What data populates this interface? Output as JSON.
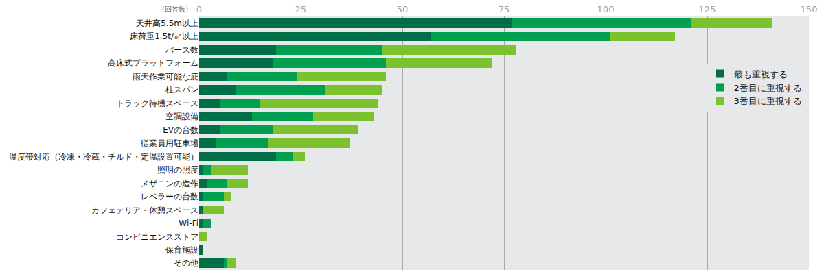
{
  "chart_data": {
    "type": "bar",
    "orientation": "horizontal",
    "stacked": true,
    "x_label": "〈回答数〉",
    "categories": [
      "天井高5.5m以上",
      "床荷重1.5t/㎡以上",
      "バース数",
      "高床式プラットフォーム",
      "雨天作業可能な庇",
      "柱スパン",
      "トラック待機スペース",
      "空調設備",
      "EVの台数",
      "従業員用駐車場",
      "温度帯対応（冷凍・冷蔵・チルド・定温設置可能）",
      "照明の照度",
      "メザニンの造作",
      "レベラーの台数",
      "カフェテリア・休憩スペース",
      "Wi-Fi",
      "コンビニエンスストア",
      "保育施設",
      "その他"
    ],
    "series": [
      {
        "name": "最も重視する",
        "color": "#006e46",
        "values": [
          77,
          57,
          19,
          18,
          7,
          9,
          5,
          13,
          5,
          4,
          19,
          1,
          2,
          1,
          1,
          1,
          0,
          1,
          6
        ]
      },
      {
        "name": "2番目に重視する",
        "color": "#00a050",
        "values": [
          44,
          44,
          26,
          28,
          17,
          22,
          10,
          15,
          13,
          13,
          4,
          2,
          5,
          5,
          0,
          2,
          0,
          0,
          1
        ]
      },
      {
        "name": "3番目に重視する",
        "color": "#7cc12e",
        "values": [
          20,
          16,
          33,
          26,
          22,
          14,
          29,
          15,
          21,
          20,
          3,
          9,
          5,
          2,
          5,
          0,
          2,
          0,
          2
        ]
      }
    ],
    "xlim": [
      0,
      150
    ],
    "xticks": [
      0,
      25,
      50,
      75,
      100,
      125,
      150
    ],
    "grid": true,
    "legend": "right"
  }
}
